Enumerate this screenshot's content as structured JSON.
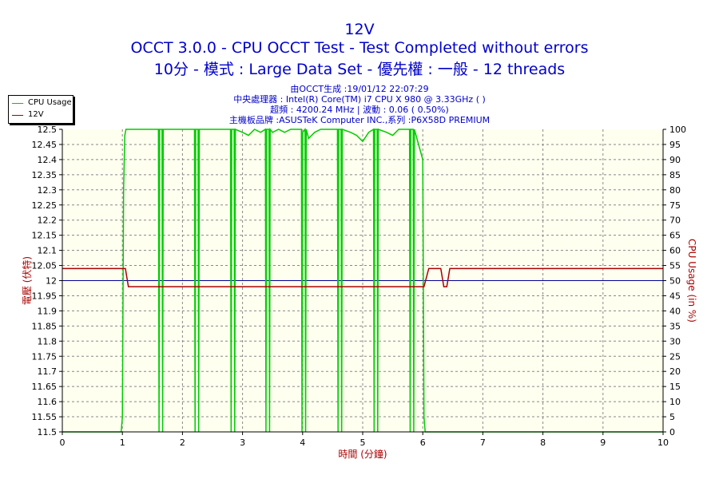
{
  "header": {
    "title": "12V",
    "subtitle1": "OCCT 3.0.0 - CPU OCCT Test - Test Completed without errors",
    "subtitle2": "10分 - 模式 : Large Data Set - 優先權 : 一般 - 12 threads",
    "info": [
      "由OCCT生成 :19/01/12 22:07:29",
      "中央處理器 : Intel(R) Core(TM) i7 CPU X 980 @ 3.33GHz (  )",
      "超頻 : 4200.24 MHz | 波動 : 0.06 ( 0.50%)",
      "主機板品牌 :ASUSTeK Computer INC.,系列 :P6X58D PREMIUM"
    ]
  },
  "colors": {
    "plot_bg": "#fffff0",
    "cpu_usage": "#00cc00",
    "voltage": "#aa0000",
    "reference": "#000099",
    "title": "#0000cc",
    "left_axis": "#aa0000",
    "right_axis": "#aa0000"
  },
  "chart_data": {
    "type": "line",
    "title": "12V",
    "xlabel": "時間 (分鐘)",
    "ylabel_left": "電壓 (伏特)",
    "ylabel_right": "CPU Usage (in %)",
    "xlim": [
      0,
      10
    ],
    "ylim_left": [
      11.5,
      12.5
    ],
    "ylim_right": [
      0,
      100
    ],
    "x_ticks": [
      0,
      1,
      2,
      3,
      4,
      5,
      6,
      7,
      8,
      9,
      10
    ],
    "y_left_ticks": [
      "11.5",
      "11.55",
      "11.6",
      "11.65",
      "11.7",
      "11.75",
      "11.8",
      "11.85",
      "11.9",
      "11.95",
      "12",
      "12.05",
      "12.1",
      "12.15",
      "12.2",
      "12.25",
      "12.3",
      "12.35",
      "12.4",
      "12.45",
      "12.5"
    ],
    "y_right_ticks": [
      0,
      5,
      10,
      15,
      20,
      25,
      30,
      35,
      40,
      45,
      50,
      55,
      60,
      65,
      70,
      75,
      80,
      85,
      90,
      95,
      100
    ],
    "grid": true,
    "legend_position": "top-left",
    "reference_line": 12.0,
    "series": [
      {
        "name": "CPU Usage",
        "axis": "right",
        "x": [
          0,
          0.98,
          1.0,
          1.02,
          1.04,
          1.06,
          1.1,
          1.2,
          1.6,
          1.61,
          1.62,
          1.66,
          1.67,
          1.68,
          2.2,
          2.21,
          2.22,
          2.26,
          2.27,
          2.28,
          2.8,
          2.81,
          2.82,
          2.86,
          2.87,
          2.88,
          3.0,
          3.1,
          3.2,
          3.3,
          3.38,
          3.39,
          3.4,
          3.44,
          3.45,
          3.46,
          3.5,
          3.6,
          3.7,
          3.8,
          3.98,
          3.99,
          4.0,
          4.04,
          4.05,
          4.06,
          4.1,
          4.2,
          4.3,
          4.58,
          4.59,
          4.6,
          4.64,
          4.65,
          4.66,
          4.8,
          4.9,
          5.0,
          5.1,
          5.18,
          5.19,
          5.2,
          5.24,
          5.25,
          5.26,
          5.4,
          5.5,
          5.6,
          5.78,
          5.79,
          5.8,
          5.84,
          5.85,
          5.86,
          6.0,
          6.02,
          6.04,
          6.06,
          10
        ],
        "values": [
          0,
          0,
          5,
          80,
          98,
          100,
          100,
          100,
          100,
          0,
          100,
          100,
          0,
          100,
          100,
          0,
          100,
          100,
          0,
          100,
          100,
          0,
          100,
          100,
          0,
          100,
          99,
          98,
          100,
          99,
          100,
          0,
          100,
          100,
          0,
          100,
          99,
          100,
          99,
          100,
          100,
          0,
          99,
          100,
          0,
          100,
          97,
          99,
          100,
          100,
          0,
          100,
          100,
          0,
          100,
          99,
          98,
          96,
          99,
          100,
          0,
          100,
          100,
          0,
          100,
          99,
          98,
          100,
          100,
          0,
          100,
          100,
          0,
          100,
          90,
          5,
          0,
          0,
          0
        ]
      },
      {
        "name": "12V",
        "axis": "left",
        "x": [
          0,
          1.0,
          1.05,
          1.1,
          6.0,
          6.02,
          6.1,
          6.3,
          6.35,
          6.4,
          6.45,
          6.5,
          6.6,
          10
        ],
        "values": [
          12.04,
          12.04,
          12.04,
          11.98,
          11.98,
          11.98,
          12.04,
          12.04,
          11.98,
          11.98,
          12.04,
          12.04,
          12.04,
          12.04
        ]
      }
    ]
  }
}
